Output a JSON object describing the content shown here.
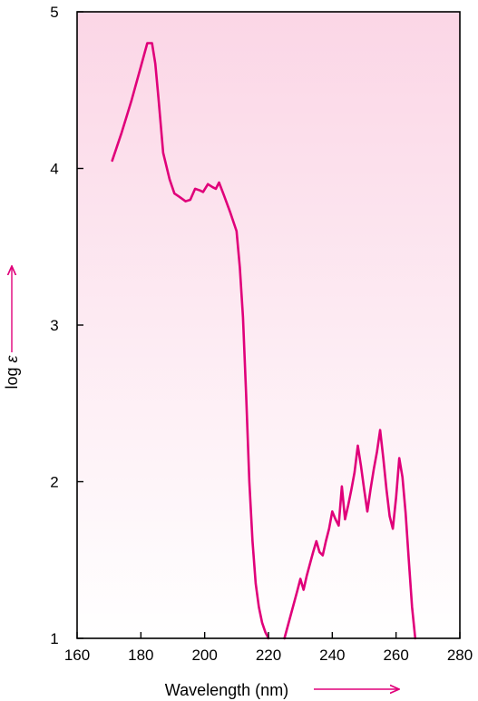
{
  "chart_data": {
    "type": "line",
    "xlabel": "Wavelength (nm)",
    "ylabel_text": "log ",
    "ylabel_symbol": "ε",
    "xlim": [
      160,
      280
    ],
    "ylim": [
      1,
      5
    ],
    "xticks": [
      160,
      180,
      200,
      220,
      240,
      260,
      280
    ],
    "yticks": [
      1,
      2,
      3,
      4,
      5
    ],
    "grid": false,
    "colors": {
      "line": "#e0007a",
      "arrow": "#e0007a",
      "gradient_top": "#fbd6e6",
      "gradient_bottom": "#ffffff"
    },
    "series": [
      {
        "x": [
          171,
          174,
          177,
          180,
          182,
          183.5,
          184.5,
          185.5,
          187,
          189,
          190.5,
          192,
          194,
          195.5,
          197,
          198.5,
          199.5,
          201,
          202.5,
          203.5,
          204.5,
          206,
          208,
          210,
          211,
          212,
          213,
          214,
          215,
          216,
          217,
          218,
          219,
          220
        ],
        "y": [
          4.05,
          4.23,
          4.43,
          4.65,
          4.8,
          4.8,
          4.67,
          4.45,
          4.1,
          3.93,
          3.84,
          3.82,
          3.79,
          3.8,
          3.87,
          3.86,
          3.85,
          3.9,
          3.88,
          3.87,
          3.91,
          3.83,
          3.72,
          3.6,
          3.37,
          3.05,
          2.55,
          2.0,
          1.62,
          1.35,
          1.2,
          1.1,
          1.04,
          1.0
        ]
      },
      {
        "x": [
          225,
          227,
          229,
          230,
          231,
          232,
          234,
          235,
          236,
          237,
          238,
          239,
          240,
          241,
          242,
          243,
          244,
          245,
          246,
          247,
          248,
          249,
          250,
          251,
          252,
          253,
          254,
          255,
          256,
          257,
          258,
          259,
          260,
          261,
          262,
          263,
          264,
          265,
          266
        ],
        "y": [
          1.0,
          1.15,
          1.3,
          1.38,
          1.31,
          1.4,
          1.55,
          1.62,
          1.55,
          1.53,
          1.62,
          1.7,
          1.81,
          1.76,
          1.72,
          1.97,
          1.76,
          1.85,
          1.95,
          2.06,
          2.23,
          2.1,
          1.95,
          1.81,
          1.95,
          2.08,
          2.19,
          2.33,
          2.15,
          1.95,
          1.78,
          1.7,
          1.9,
          2.15,
          2.03,
          1.8,
          1.5,
          1.2,
          1.0
        ]
      }
    ]
  }
}
